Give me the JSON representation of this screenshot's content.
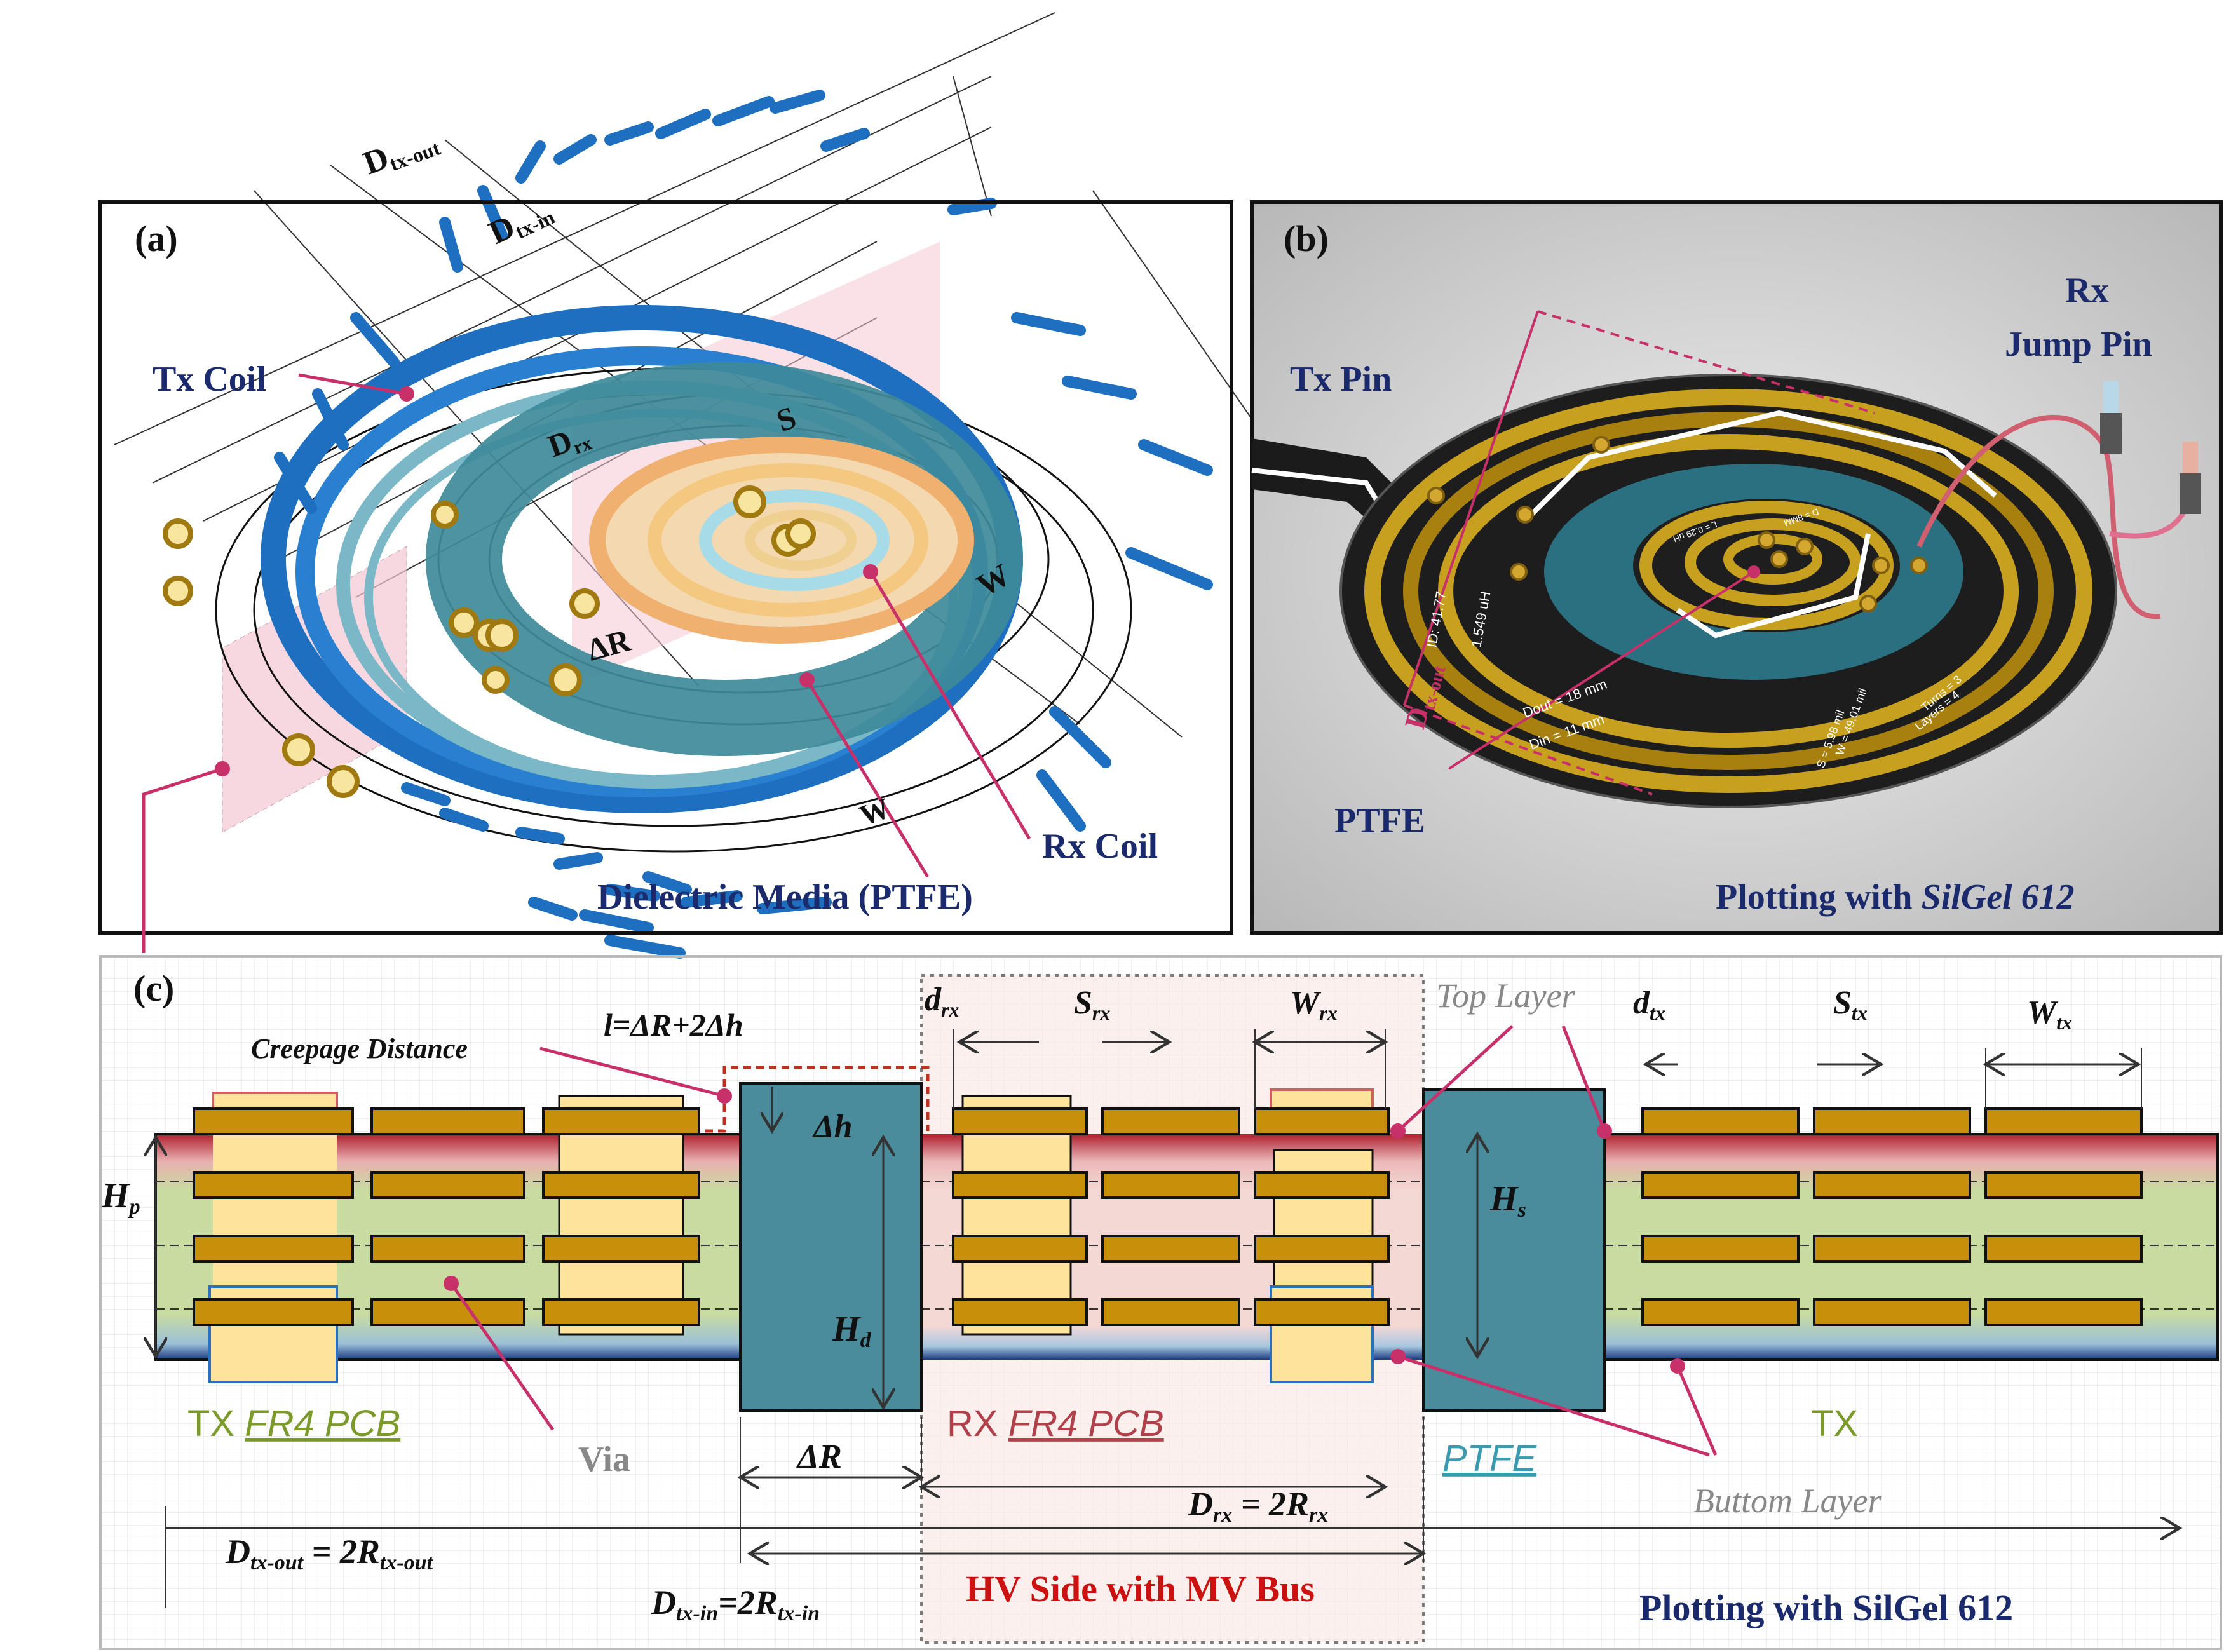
{
  "panel_a": {
    "label": "(a)",
    "tx_coil": "Tx Coil",
    "rx_coil": "Rx Coil",
    "dielectric": "Dielectric Media (PTFE)",
    "d_txout_top": "D",
    "d_txout_top_sub": "tx-out",
    "d_txin_top": "D",
    "d_txin_top_sub": "tx-in",
    "d_rx": "D",
    "d_rx_sub": "rx",
    "s": "S",
    "w": "W",
    "delta_r": "ΔR"
  },
  "panel_b": {
    "label": "(b)",
    "tx_pin": "Tx Pin",
    "rx_jump_pin_1": "Rx",
    "rx_jump_pin_2": "Jump Pin",
    "ptfe": "PTFE",
    "d_txout": "D",
    "d_txout_sub": "tx-out",
    "plotting_prefix": "Plotting with ",
    "plotting_material": "SilGel 612",
    "board_texts": [
      "1.549 uH",
      "Dout = 18 mm",
      "Din = 11 mm",
      "W = 49.01 mil",
      "S = 5.98 mil",
      "Turns = 3",
      "Layers = 4",
      "L = 0.29 uH",
      "D = 8MM",
      "ID: 41.77"
    ]
  },
  "panel_c": {
    "label": "(c)",
    "creepage": "Creepage Distance",
    "l_eq": "l=ΔR+2Δh",
    "d_rx": "d",
    "d_rx_sub": "rx",
    "s_rx": "S",
    "s_rx_sub": "rx",
    "w_rx": "W",
    "w_rx_sub": "rx",
    "top_layer": "Top Layer",
    "d_tx": "d",
    "d_tx_sub": "tx",
    "s_tx": "S",
    "s_tx_sub": "tx",
    "w_tx": "W",
    "w_tx_sub": "tx",
    "hp": "H",
    "hp_sub": "p",
    "delta_h": "Δh",
    "hd": "H",
    "hd_sub": "d",
    "hs": "H",
    "hs_sub": "s",
    "tx_fr4_prefix": "TX ",
    "tx_fr4": "FR4 PCB",
    "via": "Via",
    "delta_r": "ΔR",
    "rx_fr4_prefix": "RX ",
    "rx_fr4": "FR4 PCB",
    "ptfe": "PTFE",
    "tx": "TX",
    "buttom_layer": "Buttom Layer",
    "drx_eq_a": "D",
    "drx_eq_a_sub": "rx",
    "drx_eq_b": " = 2R",
    "drx_eq_b_sub": "rx",
    "dtxout_eq_a": "D",
    "dtxout_eq_a_sub": "tx-out",
    "dtxout_eq_b": " = 2R",
    "dtxout_eq_b_sub": "tx-out",
    "dtxin_eq_a": "D",
    "dtxin_eq_a_sub": "tx-in",
    "dtxin_eq_b": "=2R",
    "dtxin_eq_b_sub": "tx-in",
    "hv_side": "HV Side with MV Bus",
    "plotting": "Plotting with SilGel 612"
  },
  "colors": {
    "navy": "#1a2a6c",
    "tx_blue": "#1e6fc0",
    "teal": "#4a8c9c",
    "copper": "#c8900a",
    "via_fill": "#fde49a",
    "magenta": "#c8306a",
    "hv_red": "#cc1111",
    "fr4_green": "#c8dba0",
    "olive_text": "#7b9a2a",
    "rx_text": "#b0404a",
    "ptfe_text": "#3a9ab0"
  }
}
